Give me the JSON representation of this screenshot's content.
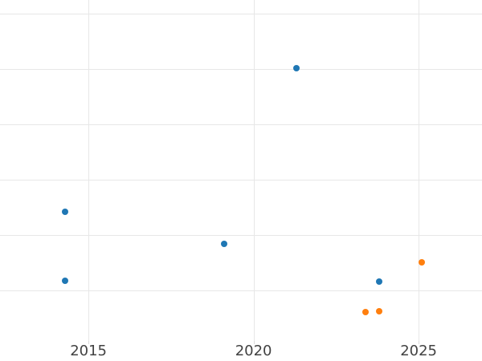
{
  "chart_data": {
    "type": "scatter",
    "title": "",
    "xlabel": "",
    "ylabel": "",
    "grid": true,
    "legend_position": "none",
    "x_ticks": [
      {
        "value": 2015,
        "label": "2015"
      },
      {
        "value": 2020,
        "label": "2020"
      },
      {
        "value": 2025,
        "label": "2025"
      }
    ],
    "y_ticks_visible_labels": [],
    "y_gridline_values": [
      1,
      2,
      3,
      4,
      5,
      6
    ],
    "y_axis_note": "y-axis tick labels are cropped out of view; y values given in gridline units (1 unit per gridline, bottom gridline = 1)",
    "xlim": [
      2012.32,
      2026.92
    ],
    "ylim": [
      0.087,
      6.246
    ],
    "marker_diameter_px": 8,
    "series": [
      {
        "name": "series-blue",
        "color": "#1f77b4",
        "points": [
          {
            "x": 2014.3,
            "y": 2.42
          },
          {
            "x": 2014.3,
            "y": 1.18
          },
          {
            "x": 2019.1,
            "y": 1.84
          },
          {
            "x": 2021.3,
            "y": 5.01
          },
          {
            "x": 2023.8,
            "y": 1.16
          }
        ]
      },
      {
        "name": "series-orange",
        "color": "#ff7f0e",
        "points": [
          {
            "x": 2023.4,
            "y": 0.61
          },
          {
            "x": 2023.8,
            "y": 0.63
          },
          {
            "x": 2025.1,
            "y": 1.51
          }
        ]
      }
    ]
  },
  "styles": {
    "background_color": "#ffffff",
    "gridline_color": "#e7e7e7",
    "tick_mark_color": "#dcdcdc",
    "tick_label_color": "#424242"
  }
}
